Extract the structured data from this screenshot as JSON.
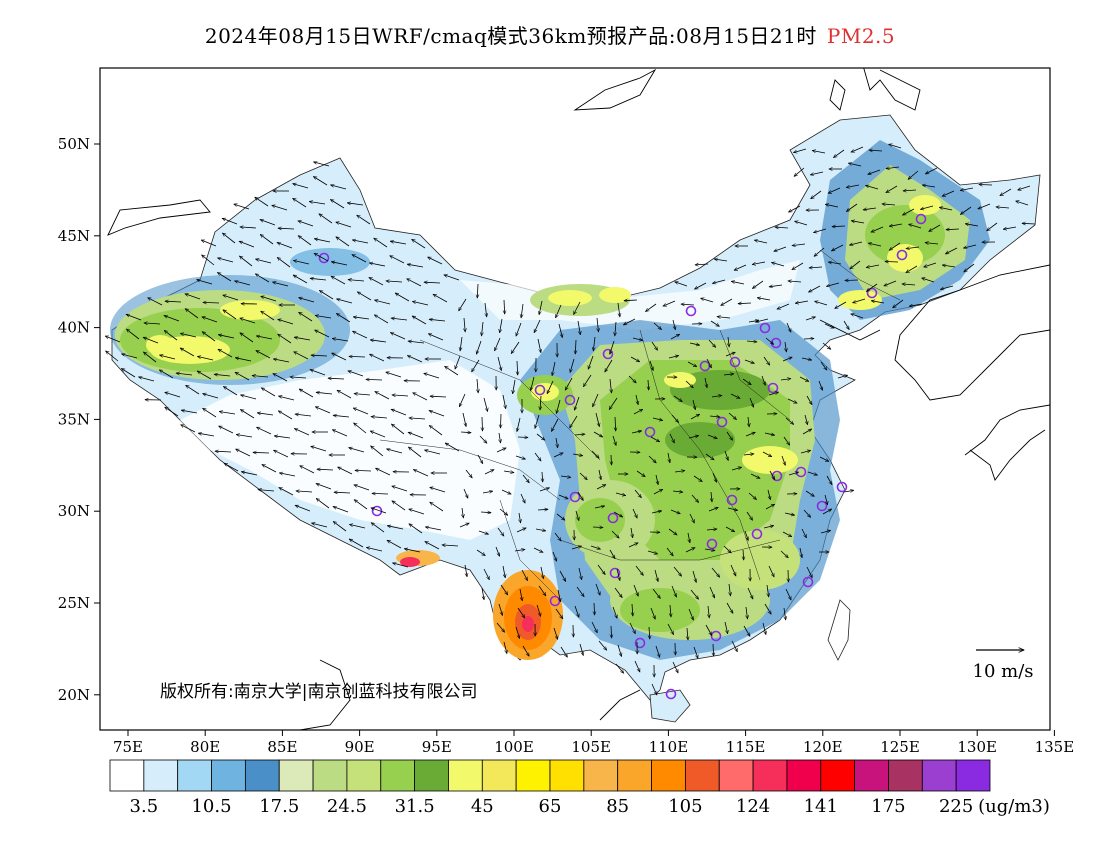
{
  "title": {
    "main": "2024年08月15日WRF/cmaq模式36km预报产品:08月15日21时",
    "variable": "PM2.5"
  },
  "copyright": "版权所有:南京大学|南京创蓝科技有限公司",
  "wind_scale": {
    "label": "10 m/s"
  },
  "axes": {
    "lon_ticks": [
      "75E",
      "80E",
      "85E",
      "90E",
      "95E",
      "100E",
      "105E",
      "110E",
      "115E",
      "120E",
      "125E",
      "130E",
      "135E"
    ],
    "lat_ticks": [
      "50N",
      "45N",
      "40N",
      "35N",
      "30N",
      "25N",
      "20N"
    ]
  },
  "colorbar": {
    "unit": "(ug/m3)",
    "colors": [
      "#ffffff",
      "#d6eefb",
      "#a3d8f4",
      "#6fb3e0",
      "#4a8fc8",
      "#dceab9",
      "#bcdc83",
      "#c5e27a",
      "#97cf4f",
      "#6aab35",
      "#f2f96b",
      "#f2e85a",
      "#fff200",
      "#ffe000",
      "#f8b54a",
      "#f9a62a",
      "#ff8a00",
      "#f05a28",
      "#ff6a6a",
      "#f52e5a",
      "#f0004c",
      "#ff0000",
      "#c8137c",
      "#a83262",
      "#9a3fd0",
      "#8a2be2"
    ],
    "tick_labels": [
      "3.5",
      "10.5",
      "17.5",
      "24.5",
      "31.5",
      "45",
      "65",
      "85",
      "105",
      "124",
      "141",
      "175",
      "225"
    ]
  }
}
